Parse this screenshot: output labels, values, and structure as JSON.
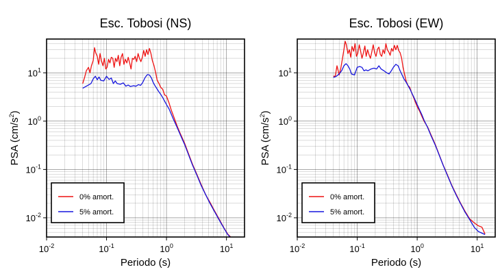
{
  "chart_data": [
    {
      "type": "line",
      "title": "Esc. Tobosi (NS)",
      "xlabel": "Periodo (s)",
      "ylabel": "PSA (cm/s²)",
      "ylabel_base": "PSA (cm/s",
      "ylabel_exp": "2",
      "ylabel_end": ")",
      "x_scale": "log",
      "y_scale": "log",
      "xlim": [
        0.01,
        20
      ],
      "ylim": [
        0.004,
        50
      ],
      "grid": true,
      "legend_position": "bottom-left",
      "x_ticks": [
        {
          "base": "10",
          "exp": "-2",
          "value": 0.01
        },
        {
          "base": "10",
          "exp": "-1",
          "value": 0.1
        },
        {
          "base": "10",
          "exp": "0",
          "value": 1
        },
        {
          "base": "10",
          "exp": "1",
          "value": 10
        }
      ],
      "y_ticks": [
        {
          "base": "10",
          "exp": "-2",
          "value": 0.01
        },
        {
          "base": "10",
          "exp": "-1",
          "value": 0.1
        },
        {
          "base": "10",
          "exp": "0",
          "value": 1
        },
        {
          "base": "10",
          "exp": "1",
          "value": 10
        }
      ],
      "series": [
        {
          "name": "0% amort.",
          "color": "#ee1111",
          "x": [
            0.04,
            0.043,
            0.046,
            0.05,
            0.053,
            0.056,
            0.06,
            0.063,
            0.066,
            0.07,
            0.074,
            0.078,
            0.082,
            0.087,
            0.092,
            0.097,
            0.102,
            0.108,
            0.114,
            0.12,
            0.127,
            0.134,
            0.141,
            0.149,
            0.157,
            0.166,
            0.175,
            0.185,
            0.195,
            0.206,
            0.218,
            0.23,
            0.243,
            0.256,
            0.27,
            0.285,
            0.301,
            0.318,
            0.336,
            0.354,
            0.374,
            0.395,
            0.417,
            0.44,
            0.465,
            0.49,
            0.52,
            0.55,
            0.58,
            0.62,
            0.66,
            0.7,
            0.75,
            0.8,
            0.86,
            0.93,
            1.0,
            1.1,
            1.2,
            1.3,
            1.5,
            1.7,
            2.0,
            2.3,
            2.7,
            3.2,
            3.8,
            4.5,
            5.3,
            6.3,
            7.5,
            9.0,
            10.5,
            12.0,
            13.5
          ],
          "y": [
            6,
            8,
            11,
            13,
            10,
            14,
            18,
            33,
            26,
            22,
            15,
            25,
            18,
            14,
            20,
            12,
            13,
            19,
            16,
            21,
            20,
            13,
            20,
            17,
            23,
            14,
            21,
            25,
            15,
            19,
            16,
            21,
            16,
            12,
            20,
            19,
            22,
            17,
            25,
            20,
            17,
            21,
            29,
            22,
            30,
            24,
            32,
            25,
            18,
            14,
            10,
            7,
            6,
            5,
            4.6,
            3.5,
            3.3,
            2.4,
            1.7,
            1.3,
            0.8,
            0.55,
            0.35,
            0.22,
            0.13,
            0.08,
            0.048,
            0.03,
            0.021,
            0.014,
            0.0095,
            0.0063,
            0.0046,
            0.0039,
            0.0034
          ]
        },
        {
          "name": "5% amort.",
          "color": "#1515dd",
          "x": [
            0.04,
            0.045,
            0.05,
            0.055,
            0.06,
            0.065,
            0.07,
            0.075,
            0.08,
            0.09,
            0.1,
            0.11,
            0.12,
            0.13,
            0.14,
            0.15,
            0.17,
            0.19,
            0.21,
            0.23,
            0.25,
            0.28,
            0.31,
            0.34,
            0.37,
            0.4,
            0.44,
            0.48,
            0.52,
            0.56,
            0.6,
            0.65,
            0.7,
            0.75,
            0.8,
            0.86,
            0.93,
            1.0,
            1.1,
            1.2,
            1.3,
            1.5,
            1.7,
            2.0,
            2.3,
            2.7,
            3.2,
            3.8,
            4.5,
            5.3,
            6.3,
            7.5,
            9.0,
            10.5,
            12.0,
            13.5
          ],
          "y": [
            4.8,
            5.2,
            5.6,
            6.0,
            7.5,
            8.5,
            7.2,
            8.2,
            7.0,
            6.8,
            8.5,
            7.3,
            7.8,
            6.0,
            6.8,
            6.0,
            5.8,
            6.2,
            5.3,
            5.6,
            5.2,
            5.4,
            5.3,
            5.7,
            5.5,
            6.3,
            8.0,
            9.2,
            9.0,
            7.8,
            6.3,
            5.3,
            4.6,
            4.0,
            3.6,
            3.1,
            2.6,
            2.2,
            1.8,
            1.4,
            1.1,
            0.75,
            0.52,
            0.33,
            0.21,
            0.125,
            0.077,
            0.046,
            0.03,
            0.02,
            0.0135,
            0.0092,
            0.0062,
            0.0045,
            0.0038,
            0.0034
          ]
        }
      ]
    },
    {
      "type": "line",
      "title": "Esc. Tobosi (EW)",
      "xlabel": "Periodo (s)",
      "ylabel": "PSA (cm/s²)",
      "ylabel_base": "PSA (cm/s",
      "ylabel_exp": "2",
      "ylabel_end": ")",
      "x_scale": "log",
      "y_scale": "log",
      "xlim": [
        0.01,
        20
      ],
      "ylim": [
        0.004,
        50
      ],
      "grid": true,
      "legend_position": "bottom-left",
      "x_ticks": [
        {
          "base": "10",
          "exp": "-2",
          "value": 0.01
        },
        {
          "base": "10",
          "exp": "-1",
          "value": 0.1
        },
        {
          "base": "10",
          "exp": "0",
          "value": 1
        },
        {
          "base": "10",
          "exp": "1",
          "value": 10
        }
      ],
      "y_ticks": [
        {
          "base": "10",
          "exp": "-2",
          "value": 0.01
        },
        {
          "base": "10",
          "exp": "-1",
          "value": 0.1
        },
        {
          "base": "10",
          "exp": "0",
          "value": 1
        },
        {
          "base": "10",
          "exp": "1",
          "value": 10
        }
      ],
      "series": [
        {
          "name": "0% amort.",
          "color": "#ee1111",
          "x": [
            0.04,
            0.043,
            0.046,
            0.05,
            0.053,
            0.056,
            0.06,
            0.063,
            0.066,
            0.07,
            0.074,
            0.078,
            0.082,
            0.087,
            0.092,
            0.097,
            0.102,
            0.108,
            0.114,
            0.12,
            0.127,
            0.134,
            0.141,
            0.149,
            0.157,
            0.166,
            0.175,
            0.185,
            0.195,
            0.206,
            0.218,
            0.23,
            0.243,
            0.256,
            0.27,
            0.285,
            0.301,
            0.318,
            0.336,
            0.354,
            0.374,
            0.395,
            0.417,
            0.44,
            0.465,
            0.49,
            0.52,
            0.55,
            0.58,
            0.62,
            0.66,
            0.7,
            0.75,
            0.8,
            0.86,
            0.93,
            1.0,
            1.1,
            1.2,
            1.3,
            1.5,
            1.7,
            2.0,
            2.3,
            2.7,
            3.2,
            3.8,
            4.5,
            5.3,
            6.3,
            7.5,
            9.0,
            10.5,
            12.0,
            13.5
          ],
          "y": [
            8.5,
            8.5,
            14,
            9,
            12,
            18,
            30,
            45,
            38,
            25,
            30,
            21,
            35,
            28,
            40,
            22,
            25,
            38,
            28,
            20,
            26,
            36,
            22,
            30,
            24,
            20,
            27,
            38,
            26,
            22,
            31,
            34,
            24,
            22,
            30,
            25,
            40,
            30,
            27,
            23,
            32,
            28,
            37,
            30,
            37,
            29,
            26,
            20,
            13,
            9,
            6.5,
            5.5,
            5,
            4,
            3.2,
            2.5,
            2.0,
            1.6,
            1.25,
            1.0,
            0.75,
            0.52,
            0.33,
            0.21,
            0.125,
            0.077,
            0.046,
            0.03,
            0.02,
            0.0135,
            0.0095,
            0.0078,
            0.0068,
            0.0064,
            0.0046
          ]
        },
        {
          "name": "5% amort.",
          "color": "#1515dd",
          "x": [
            0.04,
            0.045,
            0.05,
            0.055,
            0.06,
            0.065,
            0.07,
            0.075,
            0.08,
            0.09,
            0.1,
            0.11,
            0.12,
            0.13,
            0.14,
            0.15,
            0.17,
            0.19,
            0.21,
            0.23,
            0.25,
            0.28,
            0.31,
            0.34,
            0.37,
            0.4,
            0.44,
            0.48,
            0.52,
            0.56,
            0.6,
            0.65,
            0.7,
            0.75,
            0.8,
            0.86,
            0.93,
            1.0,
            1.1,
            1.2,
            1.3,
            1.5,
            1.7,
            2.0,
            2.3,
            2.7,
            3.2,
            3.8,
            4.5,
            5.3,
            6.3,
            7.5,
            9.0,
            10.5,
            12.0,
            13.5
          ],
          "y": [
            8.0,
            8.5,
            9.5,
            11,
            14,
            15.5,
            14,
            12,
            9.5,
            9.0,
            13,
            13.5,
            13,
            11,
            11.5,
            11,
            12,
            12.5,
            12,
            14,
            12,
            11,
            10,
            9.5,
            11,
            13,
            15,
            14,
            11,
            9.0,
            7.5,
            6.5,
            5.5,
            4.7,
            4.0,
            3.3,
            2.7,
            2.2,
            1.7,
            1.35,
            1.05,
            0.73,
            0.5,
            0.32,
            0.205,
            0.123,
            0.075,
            0.045,
            0.029,
            0.0195,
            0.013,
            0.0092,
            0.0063,
            0.0052,
            0.0048,
            0.0045
          ]
        }
      ]
    }
  ]
}
